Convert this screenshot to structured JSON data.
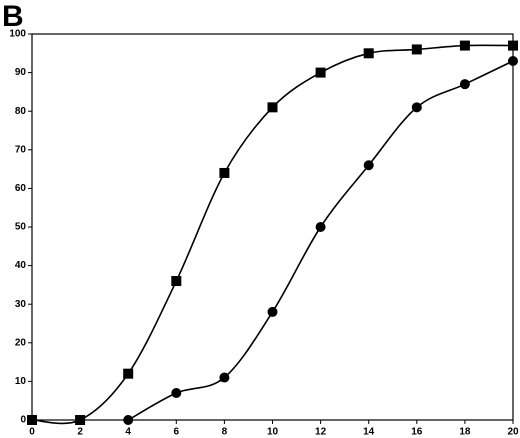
{
  "chart_data": {
    "type": "line",
    "title": "B",
    "series": [
      {
        "color": "#000000",
        "marker": "square",
        "x": [
          0,
          2,
          4,
          6,
          8,
          10,
          12,
          14,
          16,
          18,
          20
        ],
        "values": [
          0,
          0,
          12,
          36,
          64,
          81,
          90,
          95,
          96,
          97,
          97
        ]
      },
      {
        "color": "#000000",
        "marker": "circle",
        "x": [
          4,
          6,
          8,
          10,
          12,
          14,
          16,
          18,
          20
        ],
        "values": [
          0,
          7,
          11,
          28,
          50,
          66,
          81,
          87,
          93
        ]
      }
    ],
    "xlim": [
      0,
      20
    ],
    "xticks": [
      0,
      2,
      4,
      6,
      8,
      10,
      12,
      14,
      16,
      18,
      20
    ],
    "ylim": [
      0,
      100
    ],
    "yticks": [
      0,
      10,
      20,
      30,
      40,
      50,
      60,
      70,
      80,
      90,
      100
    ],
    "grid": false
  }
}
